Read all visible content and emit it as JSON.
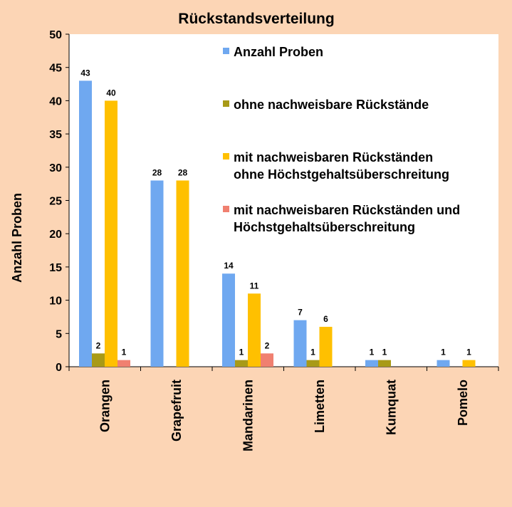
{
  "chart_data": {
    "type": "bar",
    "title": "Rückstandsverteilung",
    "xlabel": "",
    "ylabel": "Anzahl Proben",
    "ylim": [
      0,
      50
    ],
    "yticks": [
      0,
      5,
      10,
      15,
      20,
      25,
      30,
      35,
      40,
      45,
      50
    ],
    "grid": false,
    "legend_position": "top-right",
    "categories": [
      "Orangen",
      "Grapefruit",
      "Mandarinen",
      "Limetten",
      "Kumquat",
      "Pomelo"
    ],
    "series": [
      {
        "name": "Anzahl Proben",
        "legend_lines": [
          "Anzahl Proben"
        ],
        "color": "#6FA8F0",
        "values": [
          43,
          28,
          14,
          7,
          1,
          1
        ]
      },
      {
        "name": "ohne nachweisbare Rückstände",
        "legend_lines": [
          "ohne nachweisbare Rückstände"
        ],
        "color": "#A89A17",
        "values": [
          2,
          null,
          1,
          1,
          1,
          null
        ]
      },
      {
        "name": "mit nachweisbaren Rückständen ohne Höchstgehaltsüberschreitung",
        "legend_lines": [
          "mit nachweisbaren Rückständen",
          "ohne Höchstgehaltsüberschreitung"
        ],
        "color": "#FFC000",
        "values": [
          40,
          28,
          11,
          6,
          null,
          1
        ]
      },
      {
        "name": "mit nachweisbaren Rückständen und Höchstgehaltsüberschreitung",
        "legend_lines": [
          "mit nachweisbaren Rückständen und",
          "Höchstgehaltsüberschreitung"
        ],
        "color": "#F08070",
        "values": [
          1,
          null,
          2,
          null,
          null,
          null
        ]
      }
    ]
  }
}
